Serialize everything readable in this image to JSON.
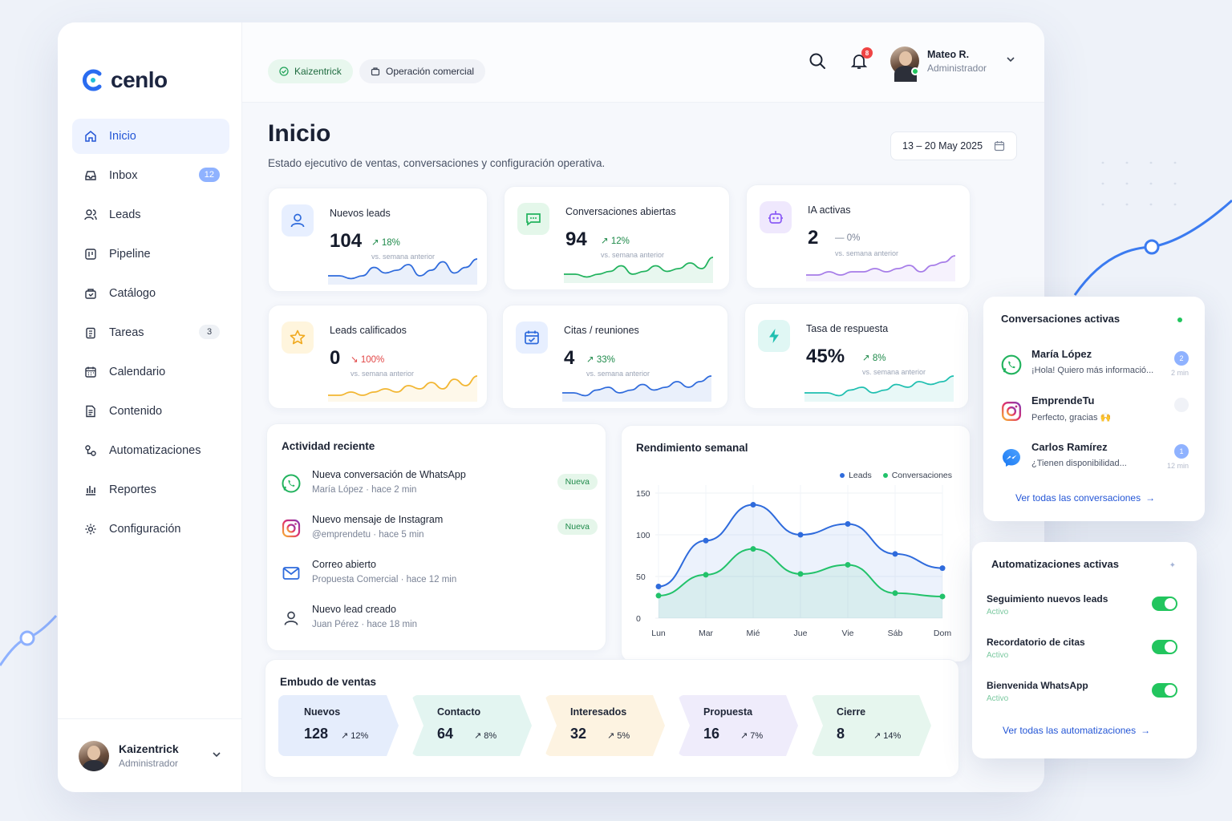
{
  "brand": {
    "name": "cenlo",
    "accent": "#2456d6"
  },
  "sidebar": {
    "items": [
      {
        "label": "Inicio",
        "icon": "home-icon",
        "active": true
      },
      {
        "label": "Inbox",
        "icon": "inbox-icon",
        "badge": "12"
      },
      {
        "label": "Leads",
        "icon": "users-icon"
      },
      {
        "label": "Pipeline",
        "icon": "pipeline-icon"
      },
      {
        "label": "Catálogo",
        "icon": "bag-icon"
      },
      {
        "label": "Tareas",
        "icon": "clipboard-icon",
        "badge": "3"
      },
      {
        "label": "Calendario",
        "icon": "calendar-icon"
      },
      {
        "label": "Contenido",
        "icon": "document-icon"
      },
      {
        "label": "Automatizaciones",
        "icon": "automation-icon"
      },
      {
        "label": "Reportes",
        "icon": "bar-chart-icon"
      },
      {
        "label": "Configuración",
        "icon": "gear-icon"
      }
    ],
    "profile": {
      "name": "Kaizentrick",
      "role": "Administrador"
    }
  },
  "header": {
    "workspace_chip": "Kaizentrick",
    "area_chip": "Operación comercial",
    "notifications": "8",
    "user": {
      "name": "Mateo R.",
      "role": "Administrador"
    }
  },
  "page": {
    "title": "Inicio",
    "subtitle": "Estado ejecutivo de ventas, conversaciones y configuración operativa.",
    "date_range": "13 – 20 May 2025"
  },
  "stats": [
    {
      "title": "Nuevos leads",
      "value": "104",
      "delta": "↗ 18%",
      "trend": "up",
      "compare": "vs. semana anterior",
      "color": "#2f6bdc",
      "icon": "user-icon",
      "spark": [
        2,
        2,
        1,
        2,
        5,
        3,
        4,
        6,
        2,
        4,
        7,
        3,
        5,
        8
      ]
    },
    {
      "title": "Conversaciones abiertas",
      "value": "94",
      "delta": "↗ 12%",
      "trend": "up",
      "compare": "vs. semana anterior",
      "color": "#22b35e",
      "icon": "chat-icon",
      "spark": [
        2,
        2,
        1,
        2,
        3,
        5,
        2,
        3,
        5,
        3,
        4,
        6,
        4,
        8
      ]
    },
    {
      "title": "IA activas",
      "value": "2",
      "delta": "— 0%",
      "trend": "flat",
      "compare": "vs. semana anterior",
      "color": "#a67ce8",
      "icon": "robot-icon",
      "spark": [
        1,
        1,
        2,
        1,
        2,
        2,
        3,
        2,
        3,
        4,
        2,
        4,
        5,
        7
      ]
    },
    {
      "title": "Leads calificados",
      "value": "0",
      "delta": "↘ 100%",
      "trend": "down",
      "compare": "vs. semana anterior",
      "color": "#f2b632",
      "icon": "star-icon",
      "spark": [
        1,
        1,
        2,
        1,
        2,
        3,
        2,
        4,
        3,
        5,
        3,
        6,
        4,
        7
      ]
    },
    {
      "title": "Citas / reuniones",
      "value": "4",
      "delta": "↗ 33%",
      "trend": "up",
      "compare": "vs. semana anterior",
      "color": "#2f6bdc",
      "icon": "calendar-check-icon",
      "spark": [
        2,
        2,
        1,
        3,
        4,
        2,
        3,
        5,
        3,
        4,
        6,
        4,
        6,
        8
      ]
    },
    {
      "title": "Tasa de respuesta",
      "value": "45%",
      "delta": "↗ 8%",
      "trend": "up",
      "compare": "vs. semana anterior",
      "color": "#1fbfb0",
      "icon": "bolt-icon",
      "spark": [
        2,
        2,
        2,
        1,
        3,
        4,
        2,
        3,
        5,
        4,
        6,
        5,
        6,
        8
      ]
    }
  ],
  "activity": {
    "title": "Actividad reciente",
    "items": [
      {
        "title": "Nueva conversación de WhatsApp",
        "sub": "María López  ·  hace 2 min",
        "tag": "Nueva",
        "icon": "whatsapp-icon"
      },
      {
        "title": "Nuevo mensaje de Instagram",
        "sub": "@emprendetu  ·  hace 5 min",
        "tag": "Nueva",
        "icon": "instagram-icon"
      },
      {
        "title": "Correo abierto",
        "sub": "Propuesta Comercial  ·  hace 12 min",
        "tag": "",
        "icon": "mail-icon"
      },
      {
        "title": "Nuevo lead creado",
        "sub": "Juan Pérez  ·  hace 18 min",
        "tag": "",
        "icon": "user-icon"
      }
    ]
  },
  "chart_data": {
    "type": "area",
    "title": "Rendimiento semanal",
    "categories": [
      "Lun",
      "Mar",
      "Mié",
      "Jue",
      "Vie",
      "Sáb",
      "Dom"
    ],
    "series": [
      {
        "name": "Leads",
        "color": "#2f6bdc",
        "values": [
          38,
          93,
          136,
          100,
          113,
          77,
          60
        ]
      },
      {
        "name": "Conversaciones",
        "color": "#22c26a",
        "values": [
          27,
          52,
          83,
          53,
          64,
          30,
          26
        ]
      }
    ],
    "yticks": [
      "150",
      "100",
      "50",
      "0"
    ],
    "ylim": [
      0,
      150
    ],
    "legend": "top-right",
    "grid": true
  },
  "funnel": {
    "title": "Embudo de ventas",
    "steps": [
      {
        "label": "Nuevos",
        "value": "128",
        "delta": "↗ 12%",
        "color": "#e5edfc"
      },
      {
        "label": "Contacto",
        "value": "64",
        "delta": "↗ 8%",
        "color": "#e3f5f1"
      },
      {
        "label": "Interesados",
        "value": "32",
        "delta": "↗ 5%",
        "color": "#fdf3e1"
      },
      {
        "label": "Propuesta",
        "value": "16",
        "delta": "↗ 7%",
        "color": "#efecfb"
      },
      {
        "label": "Cierre",
        "value": "8",
        "delta": "↗ 14%",
        "color": "#e6f6ee"
      }
    ]
  },
  "conversations": {
    "title": "Conversaciones activas",
    "items": [
      {
        "name": "María López",
        "msg": "¡Hola! Quiero más informació...",
        "badge": "2",
        "time": "2 min",
        "icon": "whatsapp-icon"
      },
      {
        "name": "EmprendeTu",
        "msg": "Perfecto, gracias 🙌",
        "badge": "",
        "time": "",
        "icon": "instagram-icon"
      },
      {
        "name": "Carlos Ramírez",
        "msg": "¿Tienen disponibilidad...",
        "badge": "1",
        "time": "12 min",
        "icon": "messenger-icon"
      }
    ],
    "link": "Ver todas las conversaciones"
  },
  "automations": {
    "title": "Automatizaciones activas",
    "items": [
      {
        "name": "Seguimiento nuevos leads",
        "state": "Activo"
      },
      {
        "name": "Recordatorio de citas",
        "state": "Activo"
      },
      {
        "name": "Bienvenida WhatsApp",
        "state": "Activo"
      }
    ],
    "link": "Ver todas las automatizaciones"
  }
}
